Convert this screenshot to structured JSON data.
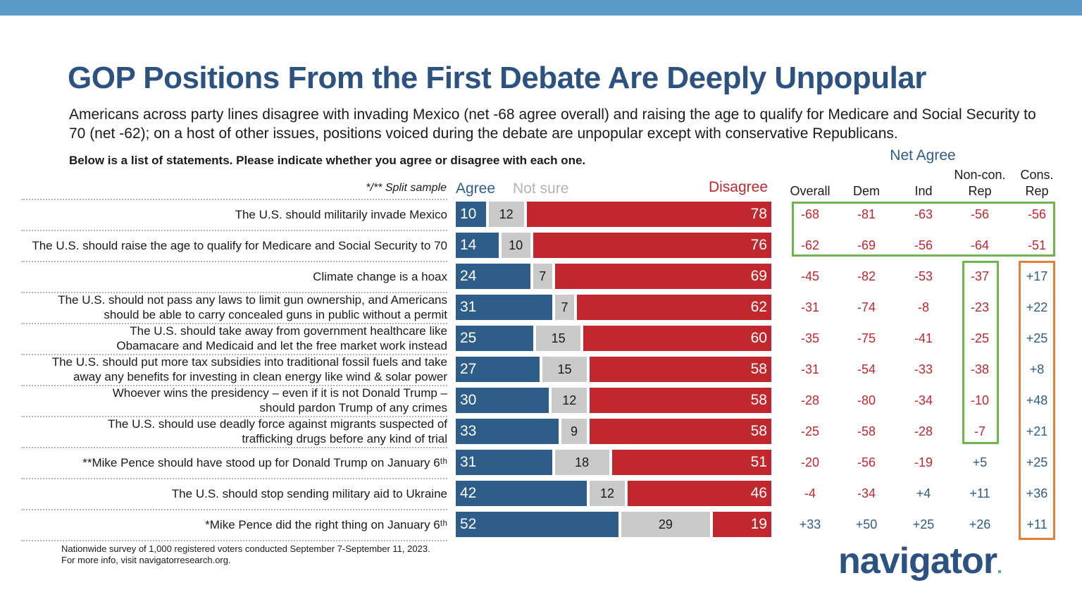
{
  "title": "GOP Positions From the First Debate Are Deeply Unpopular",
  "subtitle": "Americans across party lines disagree with invading Mexico (net -68 agree overall) and raising the age to qualify for Medicare and Social Security to 70 (net -62); on a host of other issues, positions voiced during the debate are unpopular except with conservative Republicans.",
  "question": "Below is a list of statements. Please indicate whether you agree or disagree with each one.",
  "split_note": "*/** Split sample",
  "legend": {
    "agree": "Agree",
    "not_sure": "Not sure",
    "disagree": "Disagree"
  },
  "net_agree_title": "Net Agree",
  "net_columns": [
    {
      "line1": "",
      "line2": "Overall"
    },
    {
      "line1": "",
      "line2": "Dem"
    },
    {
      "line1": "",
      "line2": "Ind"
    },
    {
      "line1": "Non-con.",
      "line2": "Rep"
    },
    {
      "line1": "Cons.",
      "line2": "Rep"
    }
  ],
  "colors": {
    "agree": "#2e5d8a",
    "not_sure": "#c9c9c9",
    "disagree": "#c0282d",
    "title": "#2c5282",
    "highlight_green": "#6fb54d",
    "highlight_orange": "#e0803a"
  },
  "chart_data": {
    "type": "bar",
    "stacked": true,
    "orientation": "horizontal",
    "series": [
      {
        "name": "Agree",
        "values": [
          10,
          14,
          24,
          31,
          25,
          27,
          30,
          33,
          31,
          42,
          52
        ]
      },
      {
        "name": "Not sure",
        "values": [
          12,
          10,
          7,
          7,
          15,
          15,
          12,
          9,
          18,
          12,
          29
        ]
      },
      {
        "name": "Disagree",
        "values": [
          78,
          76,
          69,
          62,
          60,
          58,
          58,
          58,
          51,
          46,
          19
        ]
      }
    ],
    "categories": [
      {
        "lines": [
          "The U.S. should militarily invade Mexico"
        ]
      },
      {
        "lines": [
          "The U.S. should raise the age to qualify for Medicare and Social Security to 70"
        ]
      },
      {
        "lines": [
          "Climate change is a hoax"
        ]
      },
      {
        "lines": [
          "The U.S. should not pass any laws to limit gun ownership, and Americans",
          "should be able to carry concealed guns in public without a permit"
        ]
      },
      {
        "lines": [
          "The U.S. should take away from government healthcare like",
          "Obamacare and Medicaid and let the free market work instead"
        ]
      },
      {
        "lines": [
          "The U.S. should put more tax subsidies into traditional fossil fuels and take",
          "away any benefits for investing in clean energy like wind & solar power"
        ]
      },
      {
        "lines": [
          "Whoever wins the presidency – even if it is not Donald Trump –",
          "should pardon Trump of any crimes"
        ]
      },
      {
        "lines": [
          "The U.S. should use deadly force against migrants suspected of",
          "trafficking drugs before any kind of trial"
        ]
      },
      {
        "lines": [
          "**Mike Pence should have stood up for Donald Trump on January 6ᵗʰ"
        ]
      },
      {
        "lines": [
          "The U.S. should stop sending military aid to Ukraine"
        ]
      },
      {
        "lines": [
          "*Mike Pence did the right thing on January 6ᵗʰ"
        ]
      }
    ],
    "net_agree": {
      "Overall": [
        "-68",
        "-62",
        "-45",
        "-31",
        "-35",
        "-31",
        "-28",
        "-25",
        "-20",
        "-4",
        "+33"
      ],
      "Dem": [
        "-81",
        "-69",
        "-82",
        "-74",
        "-75",
        "-54",
        "-80",
        "-58",
        "-56",
        "-34",
        "+50"
      ],
      "Ind": [
        "-63",
        "-56",
        "-53",
        "-8",
        "-41",
        "-33",
        "-34",
        "-28",
        "-19",
        "+4",
        "+25"
      ],
      "Non-con. Rep": [
        "-56",
        "-64",
        "-37",
        "-23",
        "-25",
        "-38",
        "-10",
        "-7",
        "+5",
        "+11",
        "+26"
      ],
      "Cons. Rep": [
        "-56",
        "-51",
        "+17",
        "+22",
        "+25",
        "+8",
        "+48",
        "+21",
        "+25",
        "+36",
        "+11"
      ]
    },
    "xlim": [
      0,
      100
    ]
  },
  "footnote": {
    "line1": "Nationwide survey of 1,000 registered voters conducted September 7-September 11, 2023.",
    "line2": "For more info, visit navigatorresearch.org."
  },
  "logo": {
    "text": "navigator",
    "dot": "."
  }
}
